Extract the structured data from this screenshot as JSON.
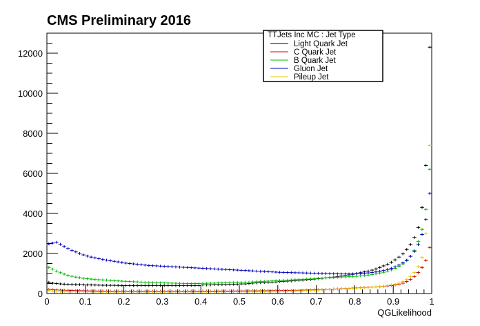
{
  "chart_data": {
    "type": "scatter",
    "title": "CMS Preliminary 2016",
    "xlabel": "QGLikelihood",
    "ylabel": "",
    "xlim": [
      0,
      1
    ],
    "ylim": [
      0,
      13000
    ],
    "x_ticks": [
      "0",
      "0.1",
      "0.2",
      "0.3",
      "0.4",
      "0.5",
      "0.6",
      "0.7",
      "0.8",
      "0.9",
      "1"
    ],
    "y_ticks": [
      "0",
      "2000",
      "4000",
      "6000",
      "8000",
      "10000",
      "12000"
    ],
    "legend": {
      "header": "TTJets Inc MC : Jet Type",
      "placement": "top-right",
      "entries": [
        {
          "label": "Light Quark Jet",
          "color": "#000000"
        },
        {
          "label": "C Quark Jet",
          "color": "#cc0000"
        },
        {
          "label": "B Quark Jet",
          "color": "#00bb00"
        },
        {
          "label": "Gluon Jet",
          "color": "#0000bb"
        },
        {
          "label": "Pileup Jet",
          "color": "#e6c800"
        }
      ]
    },
    "bin_width": 0.01,
    "x": [
      0.005,
      0.015,
      0.025,
      0.035,
      0.045,
      0.055,
      0.065,
      0.075,
      0.085,
      0.095,
      0.105,
      0.115,
      0.125,
      0.135,
      0.145,
      0.155,
      0.165,
      0.175,
      0.185,
      0.195,
      0.205,
      0.215,
      0.225,
      0.235,
      0.245,
      0.255,
      0.265,
      0.275,
      0.285,
      0.295,
      0.305,
      0.315,
      0.325,
      0.335,
      0.345,
      0.355,
      0.365,
      0.375,
      0.385,
      0.395,
      0.405,
      0.415,
      0.425,
      0.435,
      0.445,
      0.455,
      0.465,
      0.475,
      0.485,
      0.495,
      0.505,
      0.515,
      0.525,
      0.535,
      0.545,
      0.555,
      0.565,
      0.575,
      0.585,
      0.595,
      0.605,
      0.615,
      0.625,
      0.635,
      0.645,
      0.655,
      0.665,
      0.675,
      0.685,
      0.695,
      0.705,
      0.715,
      0.725,
      0.735,
      0.745,
      0.755,
      0.765,
      0.775,
      0.785,
      0.795,
      0.805,
      0.815,
      0.825,
      0.835,
      0.845,
      0.855,
      0.865,
      0.875,
      0.885,
      0.895,
      0.905,
      0.915,
      0.925,
      0.935,
      0.945,
      0.955,
      0.965,
      0.975,
      0.985,
      0.995
    ],
    "series": [
      {
        "name": "Light Quark Jet",
        "color": "#000000",
        "values": [
          560,
          520,
          500,
          480,
          470,
          460,
          455,
          450,
          445,
          440,
          430,
          430,
          425,
          420,
          415,
          415,
          410,
          410,
          405,
          400,
          400,
          400,
          400,
          400,
          400,
          400,
          400,
          400,
          400,
          400,
          400,
          400,
          400,
          400,
          400,
          400,
          400,
          400,
          400,
          400,
          430,
          430,
          430,
          450,
          450,
          450,
          450,
          460,
          460,
          470,
          480,
          480,
          500,
          520,
          530,
          540,
          550,
          560,
          570,
          580,
          600,
          610,
          620,
          630,
          650,
          660,
          670,
          690,
          700,
          720,
          740,
          760,
          780,
          800,
          820,
          840,
          870,
          900,
          930,
          960,
          1000,
          1040,
          1080,
          1120,
          1170,
          1230,
          1300,
          1380,
          1460,
          1560,
          1680,
          1820,
          1980,
          2200,
          2450,
          2800,
          3300,
          4300,
          6400,
          12300
        ]
      },
      {
        "name": "C Quark Jet",
        "color": "#cc0000",
        "values": [
          200,
          190,
          180,
          170,
          165,
          160,
          155,
          150,
          145,
          140,
          135,
          130,
          130,
          125,
          125,
          120,
          120,
          118,
          118,
          115,
          115,
          115,
          115,
          115,
          115,
          115,
          115,
          115,
          115,
          115,
          115,
          115,
          115,
          115,
          115,
          115,
          115,
          118,
          118,
          120,
          120,
          120,
          120,
          122,
          122,
          125,
          125,
          125,
          128,
          128,
          130,
          130,
          132,
          135,
          135,
          138,
          140,
          142,
          145,
          148,
          150,
          152,
          155,
          158,
          160,
          165,
          170,
          175,
          180,
          185,
          190,
          195,
          200,
          210,
          220,
          230,
          240,
          250,
          260,
          270,
          280,
          290,
          300,
          310,
          320,
          330,
          340,
          360,
          380,
          400,
          430,
          470,
          520,
          600,
          700,
          850,
          1050,
          1300,
          1650,
          2300
        ]
      },
      {
        "name": "B Quark Jet",
        "color": "#00bb00",
        "values": [
          1300,
          1220,
          1120,
          1040,
          970,
          910,
          860,
          820,
          790,
          760,
          740,
          720,
          700,
          690,
          680,
          670,
          650,
          640,
          630,
          620,
          610,
          600,
          590,
          580,
          570,
          560,
          550,
          545,
          540,
          535,
          530,
          525,
          520,
          515,
          510,
          505,
          500,
          500,
          500,
          500,
          510,
          510,
          520,
          520,
          530,
          530,
          540,
          540,
          550,
          550,
          560,
          560,
          570,
          580,
          590,
          600,
          610,
          620,
          630,
          640,
          650,
          660,
          670,
          680,
          690,
          700,
          710,
          720,
          730,
          740,
          760,
          770,
          780,
          790,
          800,
          810,
          820,
          830,
          840,
          850,
          860,
          880,
          900,
          920,
          950,
          980,
          1020,
          1060,
          1120,
          1180,
          1260,
          1360,
          1480,
          1640,
          1860,
          2150,
          2600,
          3200,
          4200,
          6200
        ]
      },
      {
        "name": "Gluon Jet",
        "color": "#0000bb",
        "values": [
          2480,
          2520,
          2560,
          2460,
          2350,
          2250,
          2150,
          2080,
          2000,
          1930,
          1870,
          1820,
          1780,
          1740,
          1700,
          1670,
          1640,
          1610,
          1580,
          1550,
          1520,
          1500,
          1480,
          1460,
          1440,
          1420,
          1400,
          1390,
          1380,
          1370,
          1360,
          1350,
          1340,
          1330,
          1320,
          1310,
          1300,
          1290,
          1280,
          1270,
          1260,
          1250,
          1240,
          1230,
          1220,
          1210,
          1200,
          1190,
          1180,
          1170,
          1160,
          1150,
          1140,
          1130,
          1120,
          1110,
          1100,
          1090,
          1080,
          1070,
          1060,
          1055,
          1050,
          1045,
          1040,
          1035,
          1030,
          1025,
          1020,
          1015,
          1010,
          1005,
          1000,
          995,
          990,
          985,
          980,
          980,
          980,
          985,
          990,
          1000,
          1010,
          1030,
          1050,
          1080,
          1110,
          1150,
          1200,
          1260,
          1330,
          1420,
          1530,
          1670,
          1860,
          2100,
          2450,
          2950,
          3700,
          5000
        ]
      },
      {
        "name": "Pileup Jet",
        "color": "#e6c800",
        "values": [
          150,
          130,
          110,
          100,
          95,
          90,
          88,
          86,
          85,
          84,
          83,
          82,
          81,
          80,
          80,
          80,
          80,
          80,
          80,
          80,
          80,
          80,
          80,
          80,
          80,
          80,
          80,
          80,
          80,
          80,
          80,
          80,
          80,
          80,
          80,
          80,
          80,
          80,
          80,
          80,
          82,
          82,
          84,
          84,
          86,
          86,
          88,
          88,
          90,
          90,
          92,
          94,
          96,
          98,
          100,
          102,
          104,
          106,
          108,
          110,
          115,
          120,
          125,
          130,
          135,
          140,
          145,
          150,
          155,
          160,
          170,
          180,
          190,
          200,
          210,
          220,
          230,
          240,
          250,
          260,
          270,
          280,
          290,
          300,
          310,
          330,
          350,
          370,
          400,
          430,
          470,
          520,
          600,
          700,
          850,
          1050,
          1350,
          1800,
          3000,
          7400
        ]
      }
    ]
  }
}
